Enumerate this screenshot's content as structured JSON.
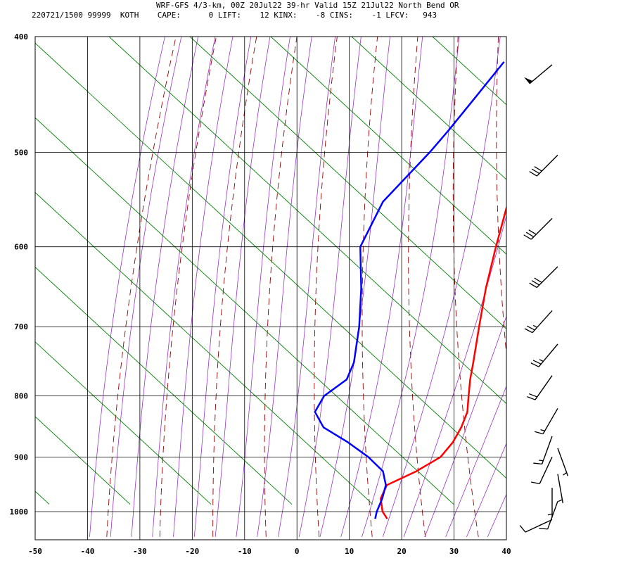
{
  "chart_data": {
    "type": "line",
    "title": "WRF-GFS 4/3-km, 00Z 20Jul22 39-hr Valid 15Z 21Jul22 North Bend OR",
    "subtitle": "220721/1500 99999  KOTH    CAPE:      0 LIFT:    12 KINX:    -8 CINS:    -1 LFCV:   943",
    "xlabel": "",
    "ylabel": "",
    "x_ticks": [
      -50,
      -40,
      -30,
      -20,
      -10,
      0,
      10,
      20,
      30,
      40
    ],
    "y_ticks": [
      400,
      500,
      600,
      700,
      800,
      900,
      1000
    ],
    "xlim": [
      -50,
      40
    ],
    "ylim": [
      1050,
      400
    ],
    "y_scale": "log",
    "skew": true,
    "grid": true,
    "colors": {
      "temperature": "#ff0000",
      "dewpoint": "#0000ff",
      "dry_adiabat": "#990000",
      "moist_adiabat": "#9933cc",
      "mixing_ratio": "#008000",
      "grid": "#000000"
    },
    "series": [
      {
        "key": "temperature",
        "pressure": [
          1014,
          1000,
          975,
          950,
          925,
          900,
          875,
          850,
          825,
          800,
          775,
          750,
          700,
          650,
          600,
          550,
          500,
          450,
          420
        ],
        "values": [
          14.3,
          12.4,
          10.2,
          9.5,
          13.2,
          15.8,
          16.1,
          15.6,
          14.6,
          12.6,
          10.6,
          8.8,
          4.9,
          0.8,
          -3.1,
          -7.1,
          -11.5,
          -16.3,
          -19.5
        ]
      },
      {
        "key": "dewpoint",
        "pressure": [
          1014,
          1000,
          975,
          950,
          925,
          900,
          875,
          850,
          825,
          800,
          775,
          750,
          700,
          650,
          600,
          550,
          500,
          480,
          450,
          420
        ],
        "values": [
          12.0,
          11.3,
          10.5,
          9.3,
          6.8,
          2.0,
          -3.9,
          -10.7,
          -14.5,
          -15.0,
          -13.0,
          -14.0,
          -18.0,
          -23.0,
          -29.0,
          -31.0,
          -29.0,
          -28.5,
          -28.0,
          -27.5
        ]
      }
    ],
    "wind_barbs": {
      "pressure": [
        420,
        500,
        565,
        620,
        675,
        720,
        765,
        815,
        860,
        880,
        895,
        925,
        950,
        975,
        1010
      ],
      "direction_deg": [
        230,
        225,
        225,
        225,
        222,
        220,
        215,
        210,
        200,
        160,
        205,
        170,
        180,
        200,
        245
      ],
      "speed_kt": [
        50,
        30,
        30,
        30,
        25,
        25,
        20,
        15,
        15,
        5,
        10,
        5,
        5,
        10,
        10
      ]
    }
  }
}
